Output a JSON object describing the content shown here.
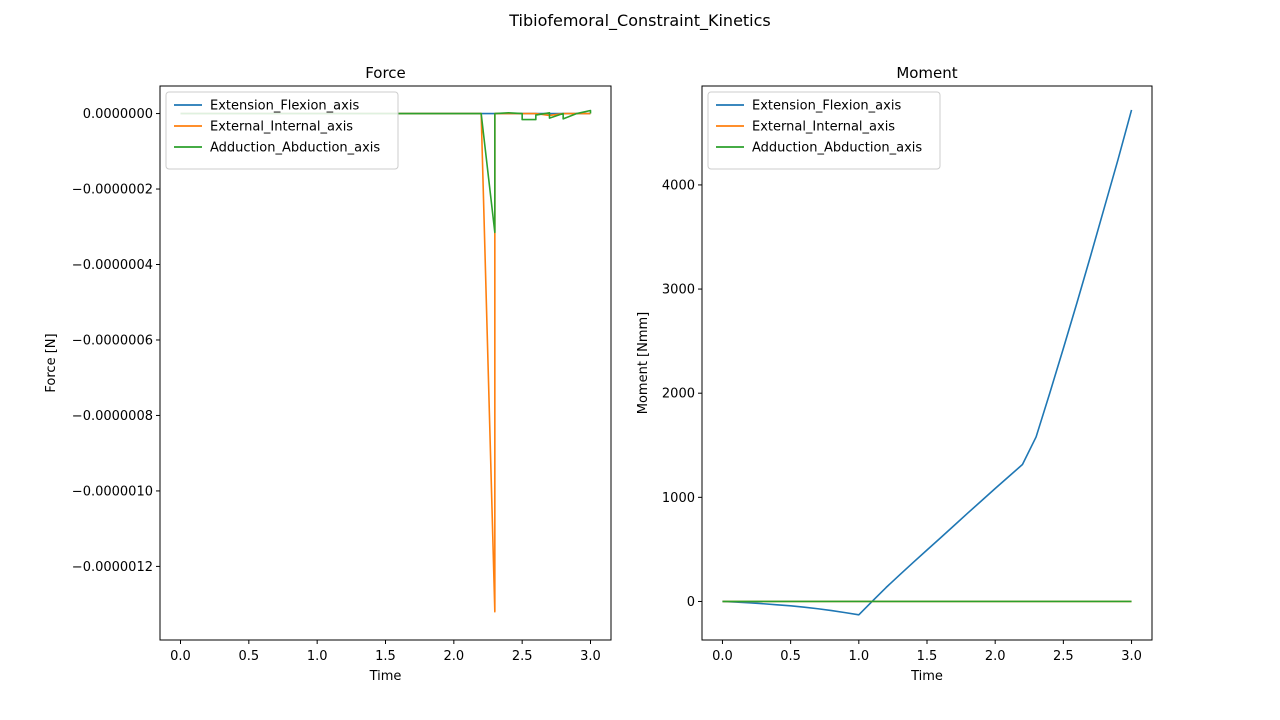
{
  "figure": {
    "title": "Tibiofemoral_Constraint_Kinetics",
    "colors": {
      "series": [
        "#1f77b4",
        "#ff7f0e",
        "#2ca02c"
      ],
      "axes": "#000000",
      "background": "#ffffff"
    }
  },
  "chart_data": [
    {
      "type": "line",
      "title": "Force",
      "xlabel": "Time",
      "ylabel": "Force [N]",
      "xlim": [
        -0.15,
        3.15
      ],
      "ylim": [
        -1.395e-06,
        7.3e-08
      ],
      "xticks": [
        0.0,
        0.5,
        1.0,
        1.5,
        2.0,
        2.5,
        3.0
      ],
      "xtick_labels": [
        "0.0",
        "0.5",
        "1.0",
        "1.5",
        "2.0",
        "2.5",
        "3.0"
      ],
      "yticks": [
        0,
        -2e-07,
        -4e-07,
        -6e-07,
        -8e-07,
        -1e-06,
        -1.2e-06
      ],
      "ytick_labels": [
        "0.0000000",
        "−0.0000002",
        "−0.0000004",
        "−0.0000006",
        "−0.0000008",
        "−0.0000010",
        "−0.0000012"
      ],
      "grid": false,
      "legend": "upper-left",
      "series": [
        {
          "name": "Extension_Flexion_axis",
          "color": "#1f77b4",
          "x": [
            0,
            0.1,
            0.2,
            0.3,
            0.4,
            0.5,
            0.6,
            0.7,
            0.8,
            0.9,
            1.0,
            1.1,
            1.2,
            1.3,
            1.4,
            1.5,
            1.6,
            1.7,
            1.8,
            1.9,
            2.0,
            2.1,
            2.2,
            2.3,
            2.4,
            2.5,
            2.6,
            2.7,
            2.8,
            2.9,
            3.0
          ],
          "y": [
            0,
            0,
            0,
            0,
            0,
            0,
            0,
            0,
            0,
            0,
            0,
            0,
            0,
            0,
            0,
            0,
            0,
            0,
            0,
            0,
            0,
            0,
            0,
            0,
            0,
            0,
            0,
            0,
            0,
            0,
            0
          ]
        },
        {
          "name": "External_Internal_axis",
          "color": "#ff7f0e",
          "x": [
            0,
            0.1,
            0.2,
            0.3,
            0.4,
            0.5,
            0.6,
            0.7,
            0.8,
            0.9,
            1.0,
            1.1,
            1.2,
            1.3,
            1.4,
            1.5,
            1.6,
            1.7,
            1.8,
            1.9,
            2.0,
            2.1,
            2.2,
            2.3,
            2.3,
            2.4,
            2.5,
            2.6,
            2.7,
            2.8,
            2.9,
            3.0
          ],
          "y": [
            0,
            0,
            0,
            0,
            0,
            0,
            0,
            0,
            0,
            0,
            0,
            0,
            0,
            0,
            0,
            0,
            0,
            0,
            0,
            0,
            0,
            0,
            0,
            -1.32e-06,
            0,
            0,
            0,
            0,
            -5e-09,
            0,
            0,
            0
          ]
        },
        {
          "name": "Adduction_Abduction_axis",
          "color": "#2ca02c",
          "x": [
            0,
            0.1,
            0.2,
            0.3,
            0.4,
            0.5,
            0.6,
            0.7,
            0.8,
            0.9,
            1.0,
            1.1,
            1.2,
            1.3,
            1.4,
            1.5,
            1.6,
            1.7,
            1.8,
            1.9,
            2.0,
            2.1,
            2.2,
            2.3,
            2.3,
            2.4,
            2.5,
            2.5,
            2.6,
            2.6,
            2.7,
            2.7,
            2.8,
            2.8,
            2.9,
            3.0,
            3.0
          ],
          "y": [
            0,
            0,
            0,
            0,
            0,
            0,
            0,
            0,
            0,
            0,
            0,
            0,
            0,
            0,
            0,
            0,
            0,
            0,
            0,
            0,
            0,
            0,
            0,
            -3.15e-07,
            0,
            2e-09,
            0,
            -1.6e-08,
            -1.6e-08,
            -4e-09,
            2e-09,
            -1.2e-08,
            0,
            -1.4e-08,
            0,
            8e-09,
            0
          ]
        }
      ]
    },
    {
      "type": "line",
      "title": "Moment",
      "xlabel": "Time",
      "ylabel": "Moment [Nmm]",
      "xlim": [
        -0.15,
        3.15
      ],
      "ylim": [
        -370,
        4950
      ],
      "xticks": [
        0.0,
        0.5,
        1.0,
        1.5,
        2.0,
        2.5,
        3.0
      ],
      "xtick_labels": [
        "0.0",
        "0.5",
        "1.0",
        "1.5",
        "2.0",
        "2.5",
        "3.0"
      ],
      "yticks": [
        0,
        1000,
        2000,
        3000,
        4000
      ],
      "ytick_labels": [
        "0",
        "1000",
        "2000",
        "3000",
        "4000"
      ],
      "grid": false,
      "legend": "upper-left",
      "series": [
        {
          "name": "Extension_Flexion_axis",
          "color": "#1f77b4",
          "x": [
            0,
            0.1,
            0.2,
            0.3,
            0.4,
            0.5,
            0.6,
            0.7,
            0.8,
            0.9,
            1.0,
            1.1,
            1.2,
            1.3,
            1.4,
            1.5,
            1.6,
            1.7,
            1.8,
            1.9,
            2.0,
            2.1,
            2.2,
            2.3,
            2.4,
            2.5,
            2.6,
            2.7,
            2.8,
            2.9,
            3.0
          ],
          "y": [
            0,
            -6,
            -13,
            -22,
            -32,
            -42,
            -55,
            -70,
            -87,
            -107,
            -128,
            4,
            134,
            256,
            376,
            494,
            612,
            731,
            850,
            967,
            1085,
            1200,
            1315,
            1580,
            2000,
            2430,
            2870,
            3320,
            3780,
            4240,
            4720
          ]
        },
        {
          "name": "External_Internal_axis",
          "color": "#ff7f0e",
          "x": [
            0,
            0.5,
            1.0,
            1.5,
            2.0,
            2.5,
            3.0
          ],
          "y": [
            0,
            0,
            0,
            0,
            0,
            0,
            0
          ]
        },
        {
          "name": "Adduction_Abduction_axis",
          "color": "#2ca02c",
          "x": [
            0,
            0.5,
            1.0,
            1.5,
            2.0,
            2.5,
            3.0
          ],
          "y": [
            0,
            0,
            0,
            0,
            0,
            0,
            0
          ]
        }
      ]
    }
  ]
}
